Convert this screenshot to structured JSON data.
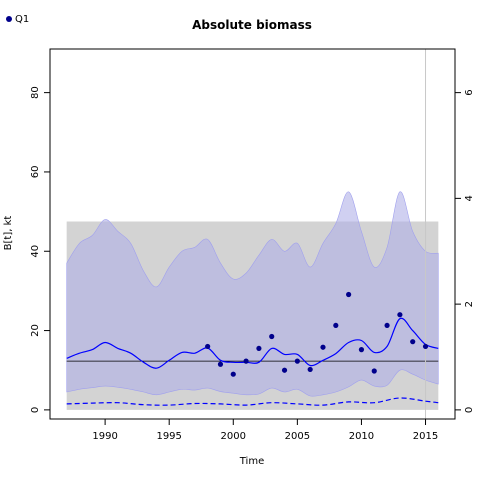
{
  "chart_data": {
    "type": "line",
    "title": "Absolute biomass",
    "xlabel": "Time",
    "ylabel": "B[t], kt",
    "xlim": [
      1985.7,
      2017.3
    ],
    "ylim": [
      -2.3,
      91
    ],
    "x_ticks": [
      1990,
      1995,
      2000,
      2005,
      2010,
      2015
    ],
    "y_ticks": [
      0,
      20,
      40,
      60,
      80
    ],
    "y2_scale": 0.075,
    "y2_ticks": [
      0,
      2,
      4,
      6
    ],
    "grid": false,
    "legend": {
      "position": "top-left",
      "entries": [
        {
          "label": "Q1",
          "color": "#00008b"
        }
      ]
    },
    "reference_line_y": 12.3,
    "vertical_line_x": 2015.0,
    "gray_region": {
      "x": [
        1987,
        2016
      ],
      "y": [
        0,
        47.5
      ]
    },
    "series": [
      {
        "kind": "band_upper",
        "color": "#b0b0e8",
        "x": [
          1987,
          1988,
          1989,
          1990,
          1991,
          1992,
          1993,
          1994,
          1995,
          1996,
          1997,
          1998,
          1999,
          2000,
          2001,
          2002,
          2003,
          2004,
          2005,
          2006,
          2007,
          2008,
          2009,
          2010,
          2011,
          2012,
          2013,
          2014,
          2015,
          2016
        ],
        "lower": [
          4.5,
          5.2,
          5.6,
          6.0,
          5.7,
          5.2,
          4.5,
          3.8,
          4.5,
          5.2,
          5.0,
          5.5,
          4.6,
          4.2,
          3.8,
          4.0,
          5.5,
          4.5,
          5.2,
          3.5,
          3.8,
          4.5,
          5.8,
          7.5,
          6.0,
          6.2,
          10.0,
          9.0,
          7.5,
          6.5
        ],
        "upper": [
          37,
          42,
          44,
          48,
          45,
          42,
          35,
          31,
          36,
          40,
          41,
          43,
          37,
          33,
          34.5,
          39,
          43,
          40,
          42,
          36,
          42,
          47,
          55,
          45,
          36,
          41,
          55,
          45,
          40,
          39.5
        ]
      },
      {
        "kind": "median",
        "name": "",
        "style": "solid",
        "color": "#0000ff",
        "x": [
          1987,
          1988,
          1989,
          1990,
          1991,
          1992,
          1993,
          1994,
          1995,
          1996,
          1997,
          1998,
          1999,
          2000,
          2001,
          2002,
          2003,
          2004,
          2005,
          2006,
          2007,
          2008,
          2009,
          2010,
          2011,
          2012,
          2013,
          2014,
          2015,
          2016
        ],
        "values": [
          13,
          14.3,
          15.2,
          17,
          15.5,
          14.3,
          12,
          10.5,
          12.5,
          14.5,
          14.3,
          15.6,
          12.5,
          12,
          12,
          12,
          15.5,
          14,
          14,
          11.2,
          12.5,
          14.2,
          17,
          17.5,
          14.5,
          16,
          23,
          20,
          16.5,
          15.5
        ]
      },
      {
        "kind": "lower",
        "name": "",
        "style": "dashed",
        "color": "#0000ff",
        "x": [
          1987,
          1989,
          1991,
          1993,
          1995,
          1997,
          1999,
          2001,
          2003,
          2005,
          2007,
          2009,
          2011,
          2013,
          2015,
          2016
        ],
        "values": [
          1.5,
          1.7,
          1.8,
          1.3,
          1.2,
          1.6,
          1.5,
          1.2,
          1.8,
          1.5,
          1.2,
          2.0,
          1.8,
          3.0,
          2.2,
          1.8
        ]
      },
      {
        "kind": "points",
        "name": "Q1",
        "color": "#00008b",
        "x": [
          1998,
          1999,
          2000,
          2001,
          2002,
          2003,
          2004,
          2005,
          2006,
          2007,
          2008,
          2009,
          2010,
          2011,
          2012,
          2013,
          2014,
          2015
        ],
        "values": [
          16,
          11.5,
          9,
          12.3,
          15.5,
          18.5,
          10,
          12.3,
          10.2,
          15.8,
          21.3,
          29.1,
          15.2,
          9.8,
          21.3,
          24,
          17.2,
          16
        ]
      }
    ]
  }
}
